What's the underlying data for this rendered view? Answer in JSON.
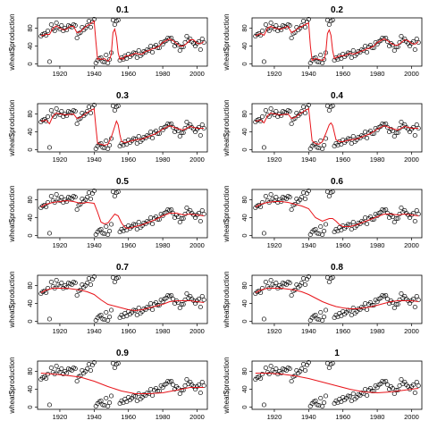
{
  "chart_data": {
    "type": "scatter",
    "description_free": true,
    "xlabel": "",
    "ylabel": "wheat$production",
    "xlim": [
      1907,
      2006
    ],
    "ylim": [
      -5,
      103
    ],
    "xticks": [
      1920,
      1940,
      1960,
      1980,
      2000
    ],
    "yticks": [
      0,
      40,
      80
    ],
    "grid": false,
    "series_colors": {
      "points": "#000000",
      "smooth": "#e8141a"
    },
    "points": {
      "x": [
        1909,
        1910,
        1911,
        1912,
        1913,
        1914,
        1915,
        1916,
        1917,
        1918,
        1919,
        1920,
        1921,
        1922,
        1923,
        1924,
        1925,
        1926,
        1927,
        1928,
        1929,
        1930,
        1931,
        1932,
        1933,
        1934,
        1935,
        1936,
        1937,
        1938,
        1939,
        1940,
        1941,
        1942,
        1943,
        1944,
        1945,
        1946,
        1947,
        1948,
        1949,
        1950,
        1951,
        1952,
        1953,
        1954,
        1955,
        1956,
        1957,
        1958,
        1959,
        1960,
        1961,
        1962,
        1963,
        1964,
        1965,
        1966,
        1967,
        1968,
        1969,
        1970,
        1971,
        1972,
        1973,
        1974,
        1975,
        1976,
        1977,
        1978,
        1979,
        1980,
        1981,
        1982,
        1983,
        1984,
        1985,
        1986,
        1987,
        1988,
        1989,
        1990,
        1991,
        1992,
        1993,
        1994,
        1995,
        1996,
        1997,
        1998,
        1999,
        2000,
        2001,
        2002,
        2003,
        2004
      ],
      "y": [
        62,
        66,
        68,
        64,
        74,
        5,
        88,
        78,
        74,
        92,
        82,
        78,
        86,
        74,
        80,
        76,
        86,
        84,
        82,
        88,
        86,
        58,
        68,
        70,
        82,
        76,
        80,
        86,
        96,
        82,
        94,
        100,
        2,
        8,
        12,
        14,
        5,
        4,
        20,
        2,
        10,
        25,
        98,
        88,
        96,
        98,
        8,
        14,
        10,
        18,
        12,
        22,
        16,
        20,
        25,
        24,
        14,
        30,
        18,
        22,
        28,
        26,
        32,
        30,
        40,
        26,
        38,
        42,
        36,
        36,
        48,
        44,
        50,
        52,
        58,
        56,
        58,
        50,
        40,
        46,
        42,
        30,
        38,
        38,
        48,
        62,
        52,
        56,
        50,
        46,
        40,
        46,
        50,
        32,
        56,
        48
      ]
    },
    "panels": [
      {
        "title": "0.1",
        "smooth": {
          "x": [
            1909,
            1912,
            1914,
            1916,
            1918,
            1920,
            1922,
            1924,
            1926,
            1928,
            1930,
            1932,
            1934,
            1936,
            1938,
            1940,
            1941,
            1942,
            1943,
            1944,
            1946,
            1948,
            1949,
            1950,
            1951,
            1952,
            1953,
            1954,
            1955,
            1956,
            1957,
            1958,
            1960,
            1962,
            1964,
            1966,
            1968,
            1970,
            1972,
            1974,
            1976,
            1978,
            1980,
            1982,
            1984,
            1986,
            1988,
            1990,
            1992,
            1994,
            1996,
            1998,
            2000,
            2002,
            2004
          ],
          "y": [
            63,
            66,
            66,
            80,
            85,
            80,
            76,
            78,
            84,
            84,
            70,
            72,
            80,
            86,
            90,
            96,
            50,
            10,
            12,
            10,
            12,
            6,
            10,
            22,
            70,
            78,
            60,
            25,
            10,
            14,
            10,
            18,
            18,
            20,
            24,
            22,
            22,
            28,
            30,
            34,
            36,
            40,
            48,
            52,
            56,
            52,
            46,
            40,
            40,
            46,
            54,
            54,
            46,
            45,
            50
          ]
        }
      },
      {
        "title": "0.2",
        "smooth": {
          "x": [
            1909,
            1912,
            1914,
            1916,
            1918,
            1920,
            1924,
            1928,
            1930,
            1932,
            1934,
            1936,
            1938,
            1940,
            1941,
            1942,
            1943,
            1944,
            1946,
            1948,
            1949,
            1950,
            1951,
            1952,
            1953,
            1954,
            1955,
            1956,
            1958,
            1960,
            1962,
            1964,
            1966,
            1968,
            1970,
            1972,
            1974,
            1976,
            1978,
            1980,
            1982,
            1984,
            1986,
            1988,
            1990,
            1992,
            1994,
            1996,
            1998,
            2000,
            2002,
            2004
          ],
          "y": [
            63,
            68,
            64,
            80,
            84,
            80,
            78,
            84,
            70,
            74,
            80,
            84,
            88,
            92,
            40,
            8,
            10,
            12,
            10,
            8,
            10,
            25,
            68,
            76,
            64,
            30,
            12,
            14,
            18,
            18,
            20,
            24,
            22,
            24,
            28,
            30,
            34,
            36,
            40,
            48,
            52,
            56,
            52,
            46,
            42,
            42,
            48,
            54,
            52,
            46,
            44,
            50
          ]
        }
      },
      {
        "title": "0.3",
        "smooth": {
          "x": [
            1909,
            1912,
            1914,
            1916,
            1918,
            1920,
            1924,
            1928,
            1930,
            1932,
            1934,
            1938,
            1940,
            1941,
            1942,
            1944,
            1946,
            1948,
            1950,
            1952,
            1953,
            1954,
            1955,
            1956,
            1958,
            1960,
            1964,
            1968,
            1972,
            1976,
            1980,
            1984,
            1988,
            1992,
            1996,
            2000,
            2004
          ],
          "y": [
            64,
            66,
            58,
            76,
            82,
            80,
            78,
            80,
            70,
            72,
            78,
            88,
            92,
            50,
            14,
            12,
            10,
            12,
            28,
            52,
            64,
            56,
            34,
            18,
            16,
            18,
            22,
            24,
            30,
            36,
            46,
            54,
            48,
            44,
            52,
            48,
            48
          ]
        }
      },
      {
        "title": "0.4",
        "smooth": {
          "x": [
            1909,
            1912,
            1914,
            1916,
            1918,
            1920,
            1924,
            1928,
            1930,
            1932,
            1934,
            1938,
            1940,
            1941,
            1942,
            1944,
            1946,
            1948,
            1950,
            1952,
            1953,
            1954,
            1955,
            1956,
            1958,
            1960,
            1964,
            1968,
            1972,
            1976,
            1980,
            1984,
            1988,
            1992,
            1996,
            2000,
            2004
          ],
          "y": [
            64,
            66,
            60,
            76,
            82,
            80,
            78,
            80,
            70,
            72,
            78,
            88,
            92,
            56,
            20,
            14,
            12,
            18,
            36,
            56,
            60,
            54,
            38,
            22,
            18,
            18,
            22,
            24,
            30,
            36,
            46,
            54,
            48,
            44,
            52,
            48,
            48
          ]
        }
      },
      {
        "title": "0.5",
        "smooth": {
          "x": [
            1909,
            1912,
            1916,
            1920,
            1924,
            1928,
            1932,
            1936,
            1940,
            1942,
            1944,
            1946,
            1948,
            1950,
            1952,
            1954,
            1956,
            1958,
            1960,
            1964,
            1968,
            1972,
            1976,
            1980,
            1984,
            1988,
            1992,
            1996,
            2000,
            2004
          ],
          "y": [
            64,
            70,
            74,
            76,
            78,
            76,
            72,
            74,
            72,
            52,
            30,
            26,
            28,
            38,
            48,
            44,
            28,
            18,
            16,
            20,
            24,
            30,
            36,
            44,
            50,
            50,
            46,
            48,
            46,
            44
          ]
        }
      },
      {
        "title": "0.6",
        "smooth": {
          "x": [
            1909,
            1912,
            1916,
            1920,
            1924,
            1928,
            1932,
            1936,
            1940,
            1944,
            1948,
            1952,
            1954,
            1956,
            1958,
            1960,
            1964,
            1968,
            1972,
            1976,
            1980,
            1984,
            1988,
            1992,
            1996,
            2000,
            2004
          ],
          "y": [
            64,
            70,
            74,
            76,
            76,
            74,
            70,
            66,
            60,
            40,
            32,
            38,
            38,
            32,
            24,
            20,
            20,
            24,
            30,
            36,
            42,
            48,
            48,
            46,
            48,
            46,
            44
          ]
        }
      },
      {
        "title": "0.7",
        "smooth": {
          "x": [
            1909,
            1912,
            1916,
            1920,
            1924,
            1928,
            1932,
            1936,
            1940,
            1944,
            1948,
            1952,
            1956,
            1960,
            1964,
            1968,
            1972,
            1976,
            1980,
            1984,
            1988,
            1992,
            1996,
            2000,
            2004
          ],
          "y": [
            64,
            70,
            74,
            74,
            74,
            72,
            70,
            66,
            60,
            48,
            38,
            34,
            30,
            26,
            24,
            26,
            30,
            34,
            38,
            44,
            46,
            46,
            46,
            44,
            42
          ]
        }
      },
      {
        "title": "0.8",
        "smooth": {
          "x": [
            1909,
            1912,
            1916,
            1920,
            1924,
            1928,
            1932,
            1936,
            1940,
            1944,
            1948,
            1952,
            1956,
            1960,
            1964,
            1968,
            1972,
            1976,
            1980,
            1984,
            1988,
            1992,
            1996,
            2000,
            2004
          ],
          "y": [
            64,
            70,
            74,
            74,
            74,
            72,
            70,
            66,
            60,
            52,
            44,
            38,
            33,
            30,
            28,
            28,
            30,
            32,
            36,
            40,
            44,
            46,
            46,
            46,
            44
          ]
        }
      },
      {
        "title": "0.9",
        "smooth": {
          "x": [
            1909,
            1916,
            1924,
            1932,
            1940,
            1948,
            1956,
            1964,
            1972,
            1980,
            1988,
            1996,
            2004
          ],
          "y": [
            76,
            74,
            71,
            67,
            58,
            46,
            36,
            30,
            30,
            32,
            38,
            44,
            44
          ]
        }
      },
      {
        "title": "1",
        "smooth": {
          "x": [
            1909,
            1916,
            1924,
            1932,
            1940,
            1948,
            1956,
            1964,
            1972,
            1980,
            1988,
            1996,
            2004
          ],
          "y": [
            76,
            76,
            74,
            70,
            64,
            56,
            48,
            40,
            34,
            32,
            34,
            38,
            42
          ]
        }
      }
    ]
  }
}
